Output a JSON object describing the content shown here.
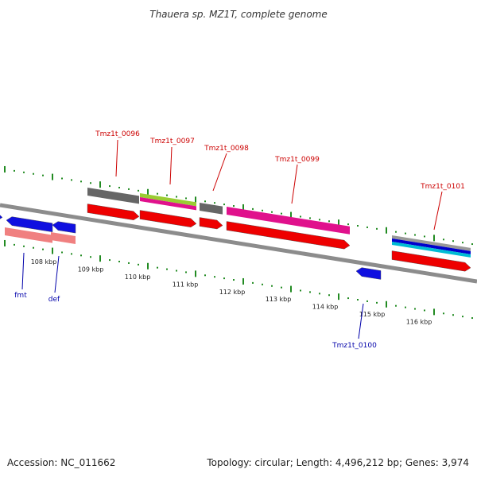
{
  "title": "Thauera sp. MZ1T, complete genome",
  "footer": {
    "accession": "Accession: NC_011662",
    "summary": "Topology: circular; Length: 4,496,212 bp; Genes: 3,974"
  },
  "colors": {
    "top_label": "#cc0000",
    "bottom_label": "#0000aa",
    "tick": "#228b22",
    "backbone": "#8c8c8c"
  },
  "ticks": [
    "108 kbp",
    "109 kbp",
    "110 kbp",
    "111 kbp",
    "112 kbp",
    "113 kbp",
    "114 kbp",
    "115 kbp",
    "116 kbp"
  ],
  "genes_top": [
    {
      "id": "g0096",
      "label": "Tmz1t_0096",
      "track_colors": [
        "#666666"
      ],
      "arrow_color": "#ee0000"
    },
    {
      "id": "g0097",
      "label": "Tmz1t_0097",
      "track_colors": [
        "#9acd32",
        "#e0118c"
      ],
      "arrow_color": "#ee0000"
    },
    {
      "id": "g0098",
      "label": "Tmz1t_0098",
      "track_colors": [
        "#666666"
      ],
      "arrow_color": "#ee0000"
    },
    {
      "id": "g0099",
      "label": "Tmz1t_0099",
      "track_colors": [
        "#e0118c"
      ],
      "arrow_color": "#ee0000"
    },
    {
      "id": "g0101",
      "label": "Tmz1t_0101",
      "track_colors": [
        "#999999",
        "#0000cc",
        "#00bcd4"
      ],
      "arrow_color": "#ee0000"
    }
  ],
  "genes_bottom": [
    {
      "id": "fmt",
      "label": "fmt",
      "arrow_color": "#1010e0",
      "track_color": "#f08080"
    },
    {
      "id": "def",
      "label": "def",
      "arrow_color": "#1010e0",
      "track_color": "#f08080"
    },
    {
      "id": "g0100",
      "label": "Tmz1t_0100",
      "arrow_color": "#1010e0"
    }
  ]
}
